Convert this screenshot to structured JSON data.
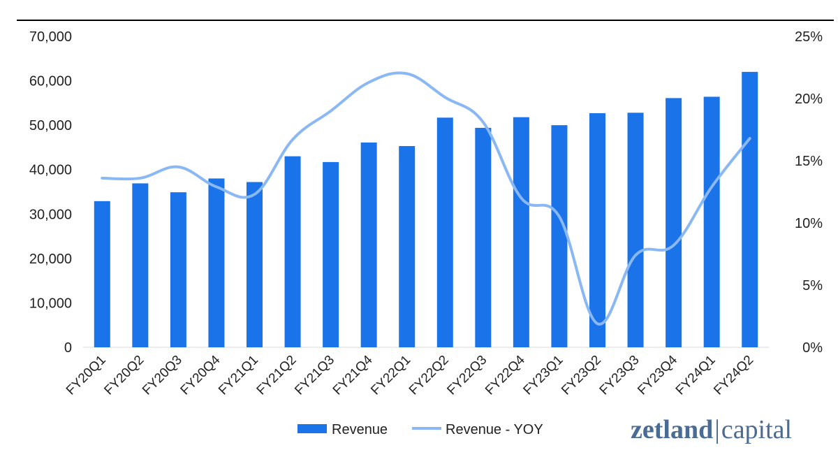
{
  "chart_data": {
    "type": "bar",
    "title": "",
    "xlabel": "",
    "ylabel": "",
    "categories": [
      "FY20Q1",
      "FY20Q2",
      "FY20Q3",
      "FY20Q4",
      "FY21Q1",
      "FY21Q2",
      "FY21Q3",
      "FY21Q4",
      "FY22Q1",
      "FY22Q2",
      "FY22Q3",
      "FY22Q4",
      "FY23Q1",
      "FY23Q2",
      "FY23Q3",
      "FY23Q4",
      "FY24Q1",
      "FY24Q2"
    ],
    "series": [
      {
        "name": "Revenue",
        "type": "bar",
        "axis": "left",
        "color": "#1a73e8",
        "values": [
          32900,
          36900,
          34900,
          38000,
          37200,
          43000,
          41700,
          46100,
          45300,
          51700,
          49400,
          51800,
          50000,
          52700,
          52800,
          56100,
          56400,
          62000
        ]
      },
      {
        "name": "Revenue - YOY",
        "type": "line",
        "axis": "right",
        "color": "#8ab8f5",
        "values": [
          13.6,
          13.6,
          14.5,
          12.9,
          12.3,
          16.7,
          19.0,
          21.3,
          22.0,
          20.1,
          18.1,
          12.0,
          10.5,
          1.9,
          7.4,
          8.2,
          12.9,
          16.8
        ]
      }
    ],
    "y_left": {
      "min": 0,
      "max": 70000,
      "ticks": [
        "0",
        "10,000",
        "20,000",
        "30,000",
        "40,000",
        "50,000",
        "60,000",
        "70,000"
      ]
    },
    "y_right": {
      "min": 0,
      "max": 25,
      "ticks": [
        "0%",
        "5%",
        "10%",
        "15%",
        "20%",
        "25%"
      ]
    },
    "grid": false,
    "legend": "bottom-center"
  },
  "logo": {
    "part1": "zetland",
    "part2": "capital",
    "color": "#4a6b94"
  }
}
